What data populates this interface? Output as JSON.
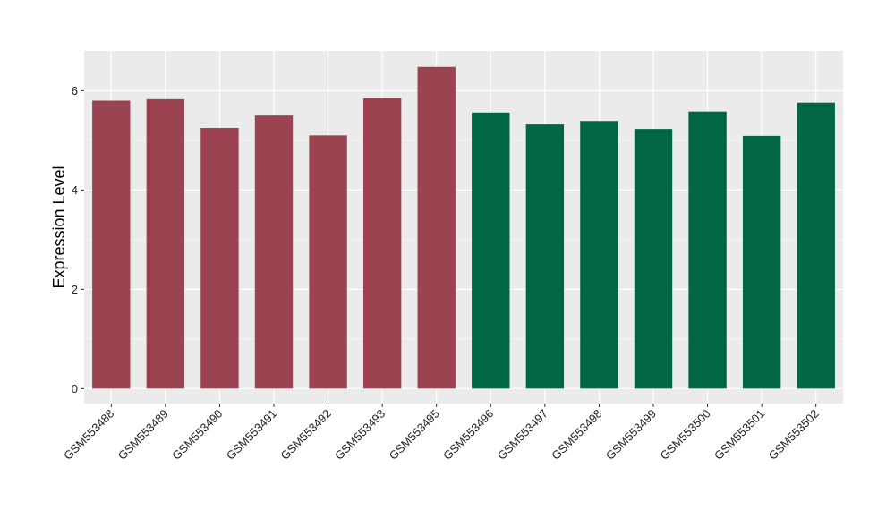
{
  "chart_data": {
    "type": "bar",
    "ylabel": "Expression Level",
    "xlabel": "",
    "title": "",
    "ylim": [
      -0.3,
      6.8
    ],
    "yticks": [
      0,
      2,
      4,
      6
    ],
    "grid": true,
    "categories": [
      "GSM553488",
      "GSM553489",
      "GSM553490",
      "GSM553491",
      "GSM553492",
      "GSM553493",
      "GSM553495",
      "GSM553496",
      "GSM553497",
      "GSM553498",
      "GSM553499",
      "GSM553500",
      "GSM553501",
      "GSM553502"
    ],
    "values": [
      5.8,
      5.83,
      5.25,
      5.5,
      5.1,
      5.85,
      6.48,
      5.56,
      5.32,
      5.39,
      5.23,
      5.58,
      5.09,
      5.76
    ],
    "colors": [
      "#9b4350",
      "#9b4350",
      "#9b4350",
      "#9b4350",
      "#9b4350",
      "#9b4350",
      "#9b4350",
      "#006644",
      "#006644",
      "#006644",
      "#006644",
      "#006644",
      "#006644",
      "#006644"
    ],
    "panel_background": "#ebebeb",
    "grid_color": "#ffffff"
  }
}
